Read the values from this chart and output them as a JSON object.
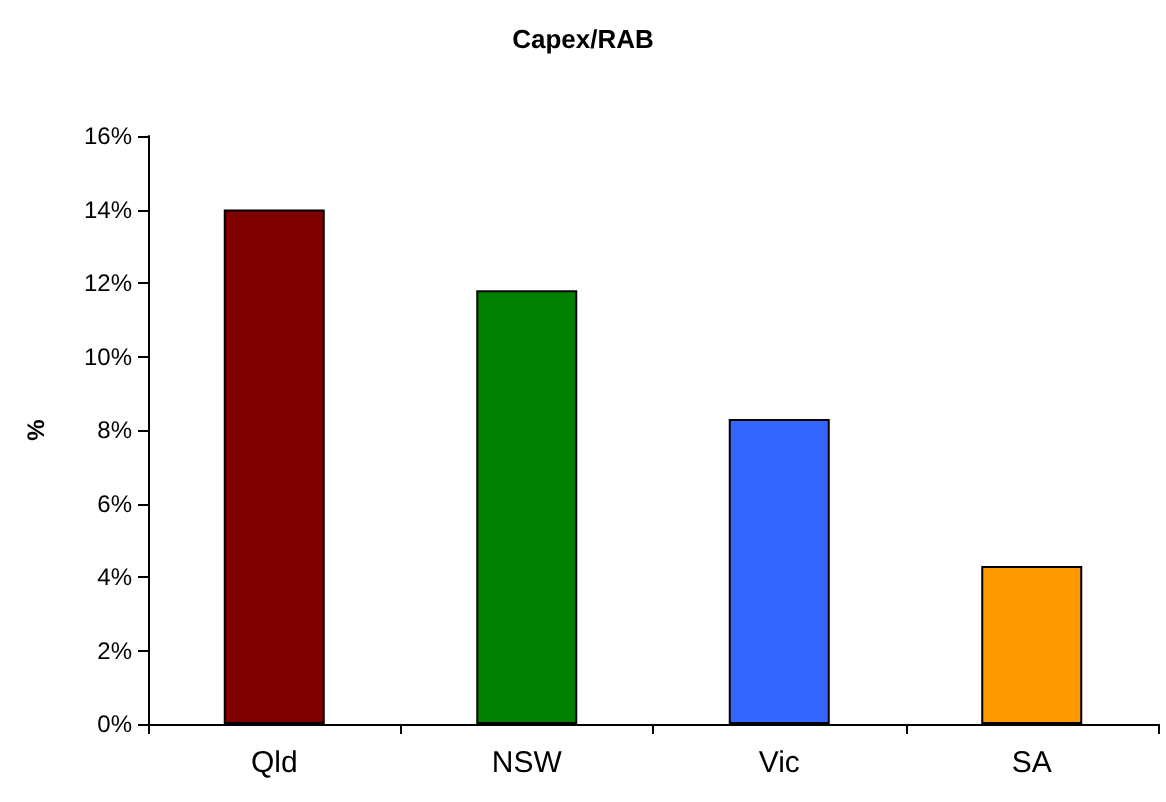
{
  "chart_data": {
    "type": "bar",
    "title": "Capex/RAB",
    "ylabel": "%",
    "categories": [
      "Qld",
      "NSW",
      "Vic",
      "SA"
    ],
    "values": [
      14.0,
      11.8,
      8.3,
      4.3
    ],
    "colors": [
      "#800000",
      "#008000",
      "#3366ff",
      "#ff9900"
    ],
    "ylim": [
      0,
      16
    ],
    "yticks": [
      {
        "value": 0,
        "label": "0%"
      },
      {
        "value": 2,
        "label": "2%"
      },
      {
        "value": 4,
        "label": "4%"
      },
      {
        "value": 6,
        "label": "6%"
      },
      {
        "value": 8,
        "label": "8%"
      },
      {
        "value": 10,
        "label": "10%"
      },
      {
        "value": 12,
        "label": "12%"
      },
      {
        "value": 14,
        "label": "14%"
      },
      {
        "value": 16,
        "label": "16%"
      }
    ],
    "grid": false
  }
}
